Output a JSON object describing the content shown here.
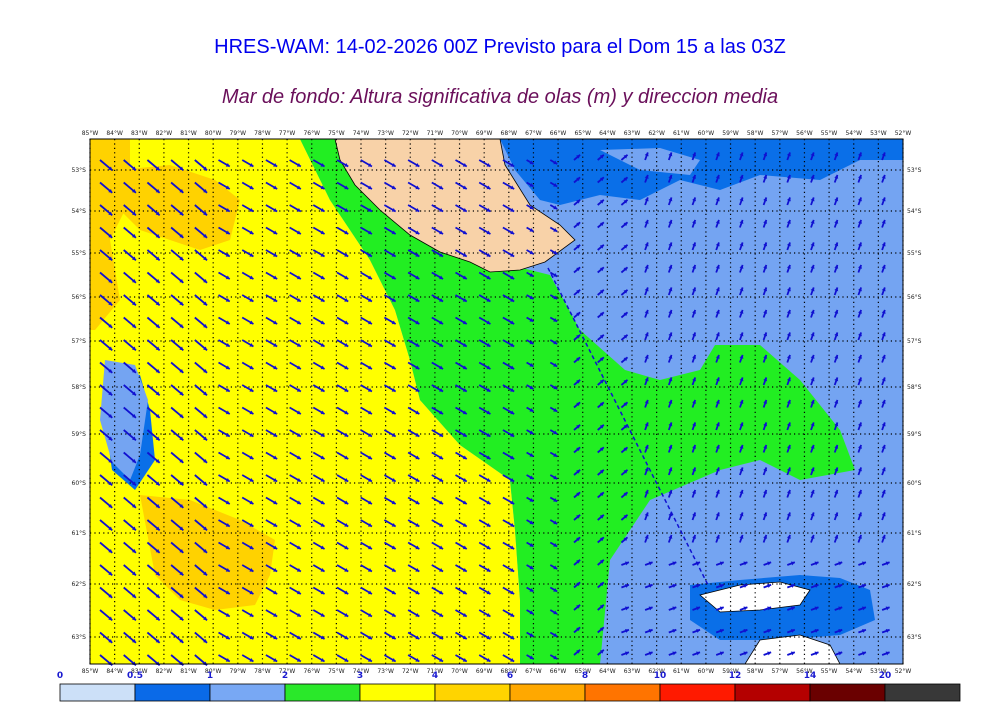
{
  "header": {
    "title": "HRES-WAM: 14-02-2026 00Z Previsto para el Dom 15 a las 03Z",
    "subtitle": "Mar de fondo: Altura significativa de olas (m) y direccion media"
  },
  "map": {
    "lon_labels": [
      "85°W",
      "84°W",
      "83°W",
      "82°W",
      "81°W",
      "80°W",
      "79°W",
      "78°W",
      "77°W",
      "76°W",
      "75°W",
      "74°W",
      "73°W",
      "72°W",
      "71°W",
      "70°W",
      "69°W",
      "68°W",
      "67°W",
      "66°W",
      "65°W",
      "64°W",
      "63°W",
      "62°W",
      "61°W",
      "60°W",
      "59°W",
      "58°W",
      "57°W",
      "56°W",
      "55°W",
      "54°W",
      "53°W",
      "52°W"
    ],
    "lat_labels": [
      "53°S",
      "54°S",
      "55°S",
      "56°S",
      "57°S",
      "58°S",
      "59°S",
      "60°S",
      "61°S",
      "62°S",
      "63°S"
    ],
    "colors": {
      "ocean_band_0_0_5": "#cfe2f7",
      "band_0_5_1": "#0a6fe8",
      "band_1_2": "#74a4f2",
      "band_2_3": "#22ee22",
      "band_3_4": "#ffff00",
      "band_4_6": "#ffd200",
      "land": "#f8d2a8",
      "arrow": "#1010d0"
    }
  },
  "colorbar": {
    "ticks": [
      "0",
      "0.5",
      "1",
      "2",
      "3",
      "4",
      "6",
      "8",
      "10",
      "12",
      "14",
      "20"
    ],
    "colors": [
      "#cce0f8",
      "#0a6ae8",
      "#78a8f4",
      "#2ae82a",
      "#ffff00",
      "#ffd400",
      "#ffa800",
      "#ff7400",
      "#ff1a00",
      "#b40000",
      "#6a0000",
      "#383838"
    ]
  }
}
